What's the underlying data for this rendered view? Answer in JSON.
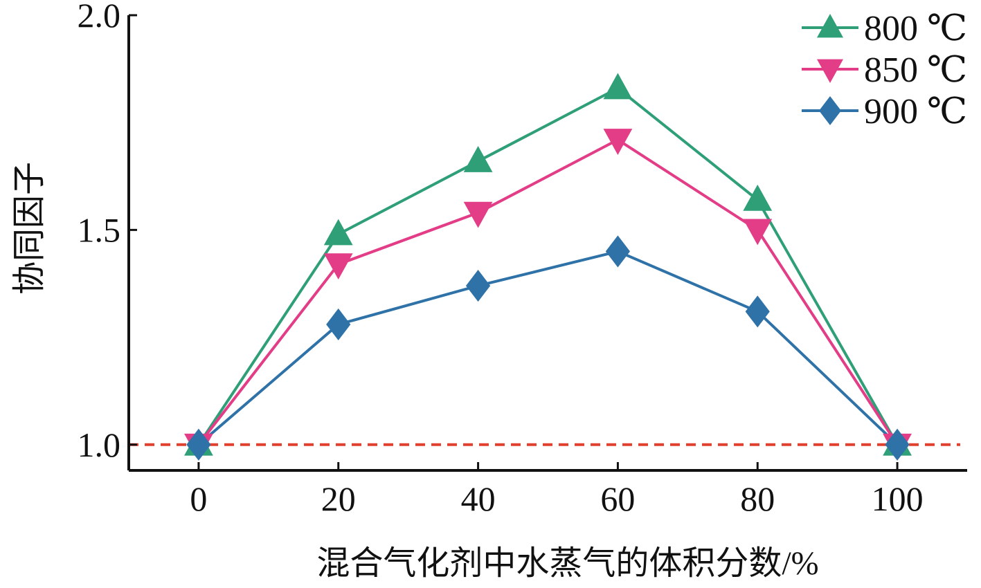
{
  "chart_data": {
    "type": "line",
    "title": "",
    "xlabel": "混合气化剂中水蒸气的体积分数/%",
    "ylabel": "协同因子",
    "x": [
      0,
      20,
      40,
      60,
      80,
      100
    ],
    "x_tick_labels": [
      "0",
      "20",
      "40",
      "60",
      "80",
      "100"
    ],
    "y_tick_labels": [
      "1.0",
      "1.5",
      "2.0"
    ],
    "y_ticks": [
      1.0,
      1.5,
      2.0
    ],
    "xlim": [
      -10,
      110
    ],
    "ylim": [
      0.94,
      2.0
    ],
    "grid": false,
    "legend_position": "top-right",
    "reference_line": {
      "y": 1.0,
      "style": "dashed",
      "color": "#e2402f"
    },
    "series": [
      {
        "name": "800 ℃",
        "marker": "triangle-up",
        "color": "#2e9f77",
        "values": [
          1.0,
          1.49,
          1.66,
          1.83,
          1.57,
          1.0
        ]
      },
      {
        "name": "850 ℃",
        "marker": "triangle-down",
        "color": "#e23d86",
        "values": [
          1.0,
          1.42,
          1.54,
          1.71,
          1.5,
          1.0
        ]
      },
      {
        "name": "900 ℃",
        "marker": "diamond",
        "color": "#2f72a8",
        "values": [
          1.0,
          1.28,
          1.37,
          1.45,
          1.31,
          1.0
        ]
      }
    ]
  }
}
